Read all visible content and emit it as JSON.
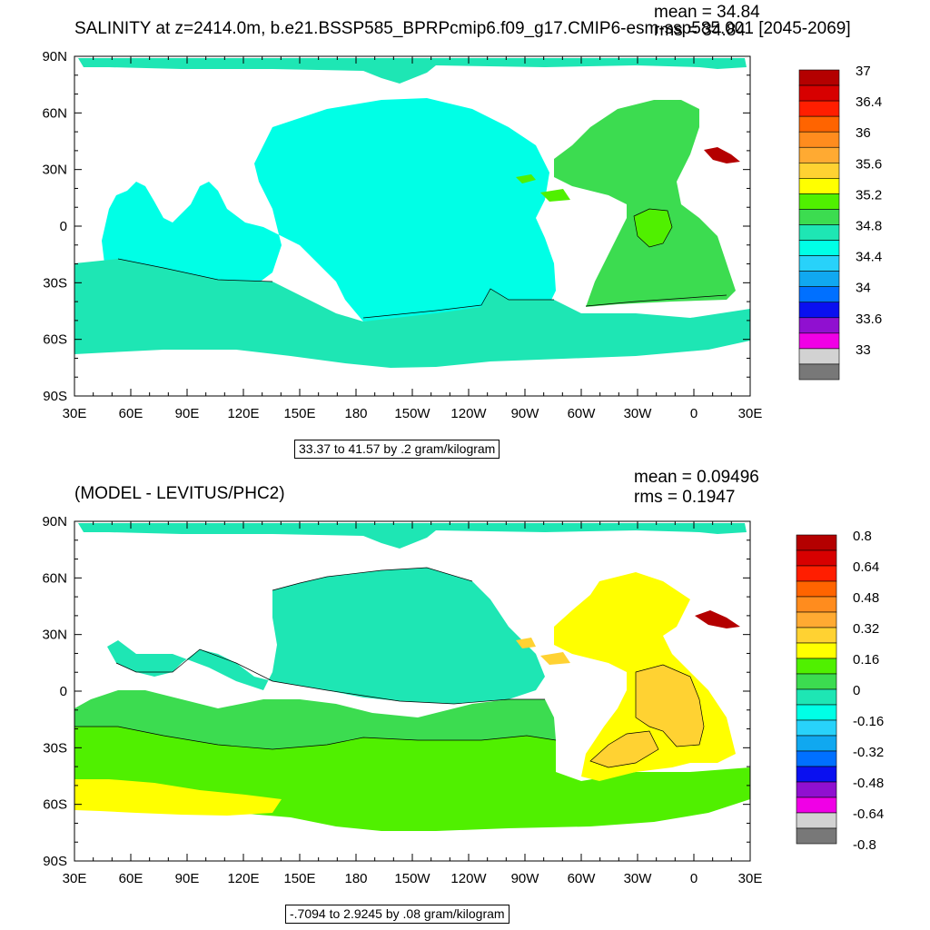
{
  "panel1": {
    "title": "SALINITY at z=2414.0m, b.e21.BSSP585_BPRPcmip6.f09_g17.CMIP6-esm-ssp585.001 [2045-2069]",
    "mean": "mean = 34.84",
    "rms": "rms = 34.84",
    "info": "33.37 to 41.57 by .2 gram/kilogram",
    "colorbar": {
      "colors": [
        "#b40000",
        "#d70000",
        "#ff1e00",
        "#ff6400",
        "#ff8c1e",
        "#ffaa32",
        "#ffd232",
        "#ffff00",
        "#50f000",
        "#3cdc50",
        "#1ee6b4",
        "#00ffe6",
        "#28d2fa",
        "#10a8f0",
        "#0070ff",
        "#0a10f0",
        "#9010d0",
        "#f000e6",
        "#d2d2d2",
        "#787878"
      ],
      "labels": [
        "37",
        "36.4",
        "36",
        "35.6",
        "35.2",
        "34.8",
        "34.4",
        "34",
        "33.6",
        "33"
      ]
    }
  },
  "panel2": {
    "title": "(MODEL - LEVITUS/PHC2)",
    "mean": "mean = 0.09496",
    "rms": "rms = 0.1947",
    "info": "-.7094 to 2.9245 by .08 gram/kilogram",
    "colorbar": {
      "colors": [
        "#b40000",
        "#d70000",
        "#ff1e00",
        "#ff6400",
        "#ff8c1e",
        "#ffaa32",
        "#ffd232",
        "#ffff00",
        "#50f000",
        "#3cdc50",
        "#1ee6b4",
        "#00ffe6",
        "#28d2fa",
        "#10a8f0",
        "#0070ff",
        "#0a10f0",
        "#9010d0",
        "#f000e6",
        "#d2d2d2",
        "#787878"
      ],
      "labels": [
        "0.8",
        "0.64",
        "0.48",
        "0.32",
        "0.16",
        "0",
        "-0.16",
        "-0.32",
        "-0.48",
        "-0.64",
        "-0.8"
      ]
    }
  },
  "axes": {
    "lat_labels": [
      "90N",
      "60N",
      "30N",
      "0",
      "30S",
      "60S",
      "90S"
    ],
    "lon_labels": [
      "30E",
      "60E",
      "90E",
      "120E",
      "150E",
      "180",
      "150W",
      "120W",
      "90W",
      "60W",
      "30W",
      "0",
      "30E"
    ]
  },
  "field_colors": {
    "p1_pacific": "#00ffe6",
    "p1_southern": "#1ee6b4",
    "p1_atlantic": "#3cdc50",
    "p1_ne_atlantic": "#50f000",
    "p1_med": "#b40000",
    "p2_pacific": "#1ee6b4",
    "p2_indian": "#3cdc50",
    "p2_southern_band": "#50f000",
    "p2_south_yellow": "#ffff00",
    "p2_atlantic": "#ffff00",
    "p2_atlantic_core": "#ffd232",
    "p2_med": "#b40000",
    "ice_arctic": "#1ee6b4"
  }
}
